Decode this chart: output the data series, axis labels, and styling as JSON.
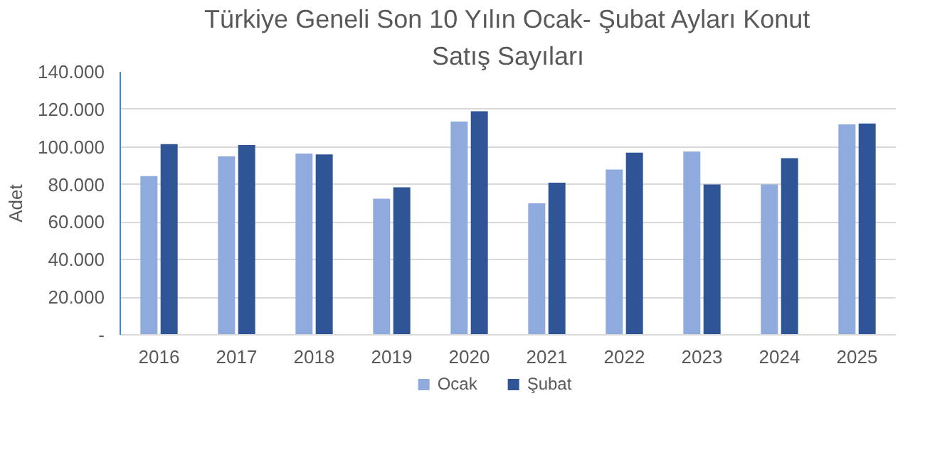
{
  "chart_data": {
    "type": "bar",
    "title": "Türkiye Geneli Son 10 Yılın Ocak- Şubat Ayları Konut Satış Sayıları",
    "ylabel": "Adet",
    "categories": [
      "2016",
      "2017",
      "2018",
      "2019",
      "2020",
      "2021",
      "2022",
      "2023",
      "2024",
      "2025"
    ],
    "series": [
      {
        "name": "Ocak",
        "color": "#8faadc",
        "values": [
          84500,
          95000,
          96500,
          72500,
          113500,
          70000,
          88000,
          97500,
          80000,
          112000
        ]
      },
      {
        "name": "Şubat",
        "color": "#2f5597",
        "values": [
          101500,
          101000,
          96000,
          78500,
          119000,
          81000,
          97000,
          80000,
          94000,
          112500
        ]
      }
    ],
    "ylim": [
      0,
      140000
    ],
    "yticks": [
      {
        "value": 0,
        "label": "-"
      },
      {
        "value": 20000,
        "label": "20.000"
      },
      {
        "value": 40000,
        "label": "40.000"
      },
      {
        "value": 60000,
        "label": "60.000"
      },
      {
        "value": 80000,
        "label": "80.000"
      },
      {
        "value": 100000,
        "label": "100.000"
      },
      {
        "value": 120000,
        "label": "120.000"
      },
      {
        "value": 140000,
        "label": "140.000"
      }
    ],
    "grid": "y",
    "legend": "bottom"
  }
}
